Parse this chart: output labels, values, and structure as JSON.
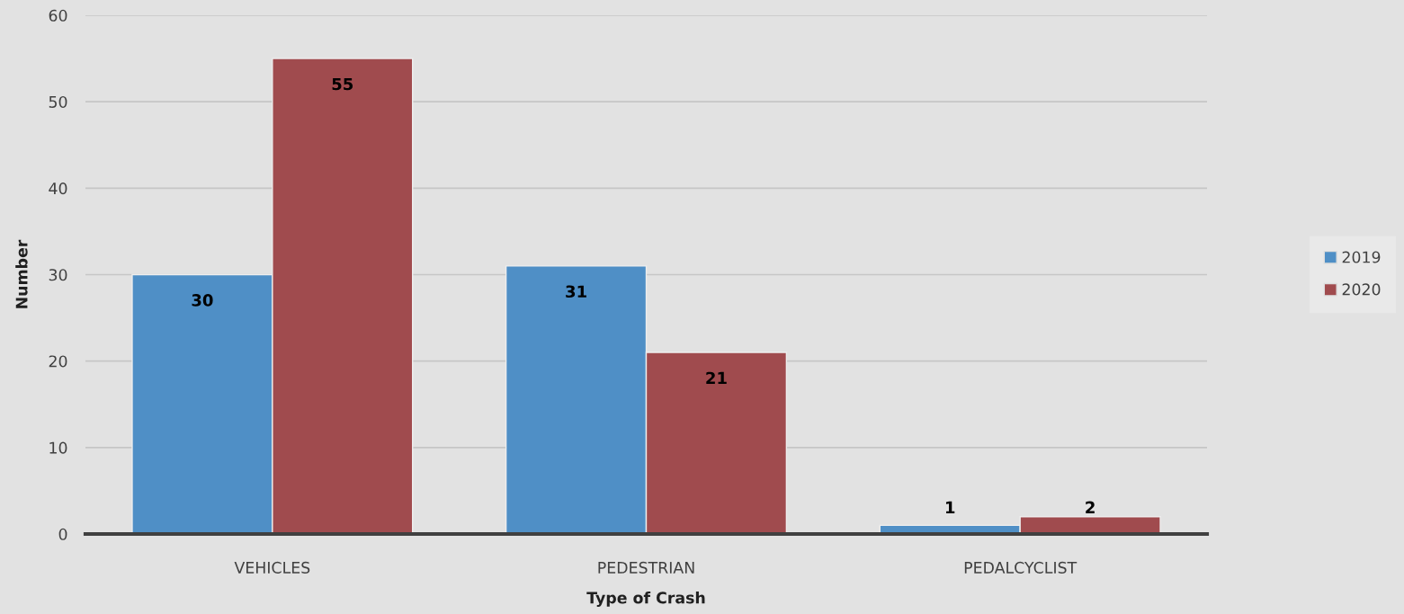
{
  "chart_data": {
    "type": "bar",
    "categories": [
      "VEHICLES",
      "PEDESTRIAN",
      "PEDALCYCLIST"
    ],
    "series": [
      {
        "name": "2019",
        "color": "#4f8fc6",
        "values": [
          30,
          31,
          1
        ]
      },
      {
        "name": "2020",
        "color": "#a04b4e",
        "values": [
          55,
          21,
          2
        ]
      }
    ],
    "xlabel": "Type of Crash",
    "ylabel": "Number",
    "ylim": [
      0,
      60
    ],
    "yticks": [
      0,
      10,
      20,
      30,
      40,
      50,
      60
    ],
    "grid": "y",
    "legend": "right",
    "data_labels": true
  }
}
